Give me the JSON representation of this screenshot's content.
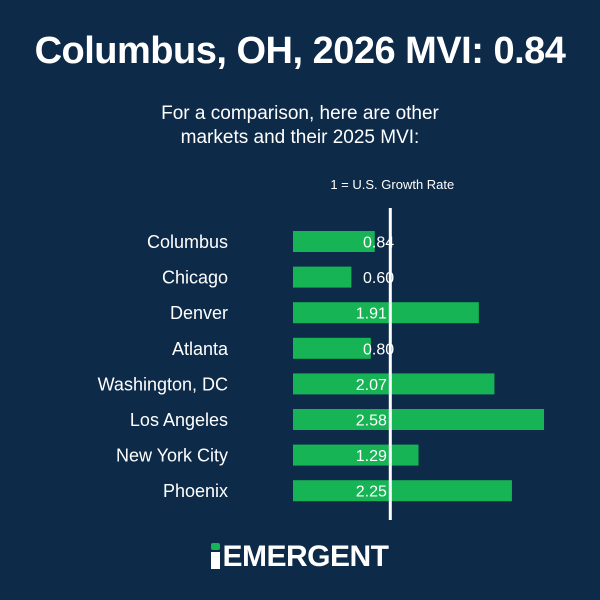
{
  "header": {
    "title": "Columbus, OH, 2026 MVI: 0.84",
    "subtitle_line1": "For a comparison, here are other",
    "subtitle_line2": "markets and their 2025 MVI:"
  },
  "chart_data": {
    "type": "bar",
    "orientation": "horizontal",
    "categories": [
      "Columbus",
      "Chicago",
      "Denver",
      "Atlanta",
      "Washington, DC",
      "Los Angeles",
      "New York City",
      "Phoenix"
    ],
    "values": [
      0.84,
      0.6,
      1.91,
      0.8,
      2.07,
      2.58,
      1.29,
      2.25
    ],
    "value_labels": [
      "0.84",
      "0.60",
      "1.91",
      "0.80",
      "2.07",
      "2.58",
      "1.29",
      "2.25"
    ],
    "xlim": [
      0,
      2.65
    ],
    "reference_line": {
      "value": 1,
      "label": "1 = U.S. Growth Rate"
    },
    "bar_color": "#16b455",
    "label_color": "#ffffff",
    "grid": false
  },
  "footer": {
    "logo_text": "EMERGENT",
    "brand_accent": "#16b455"
  },
  "colors": {
    "background": "#0d2a48",
    "text": "#ffffff"
  }
}
